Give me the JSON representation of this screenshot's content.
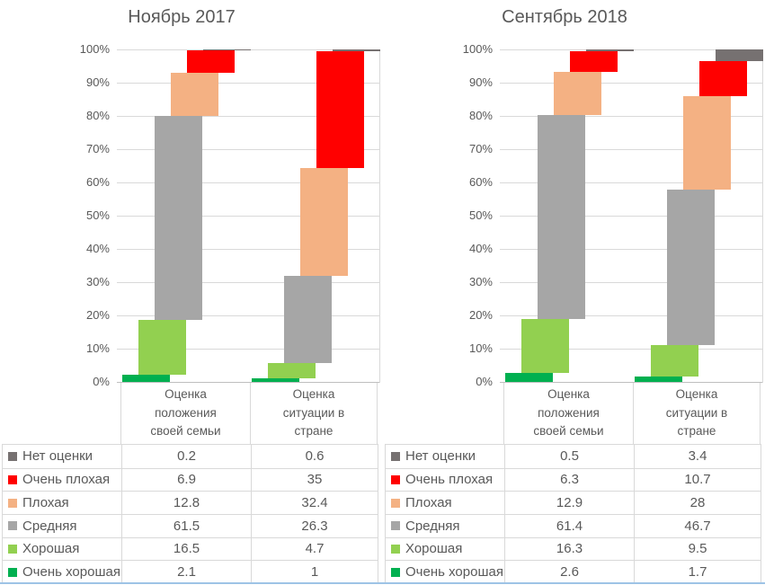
{
  "page": {
    "background": "#FFFFFF"
  },
  "colors": {
    "text": "#595959",
    "gridline": "#D9D9D9",
    "axis_line": "#BFBFBF",
    "table_border": "#D9D9D9",
    "bottom_divider": "#9DC3E6"
  },
  "chart_data": [
    {
      "type": "bar",
      "stacked": true,
      "bar_style": "staggered-stacked-columns",
      "units": "percent",
      "title": "Ноябрь 2017",
      "categories": [
        "Оценка положения своей семьи",
        "Оценка ситуации в стране"
      ],
      "series": [
        {
          "name": "Нет оценки",
          "color": "#767171",
          "values": [
            0.2,
            0.6
          ]
        },
        {
          "name": "Очень плохая",
          "color": "#FF0000",
          "values": [
            6.9,
            35
          ]
        },
        {
          "name": "Плохая",
          "color": "#F4B183",
          "values": [
            12.8,
            32.4
          ]
        },
        {
          "name": "Средняя",
          "color": "#A6A6A6",
          "values": [
            61.5,
            26.3
          ]
        },
        {
          "name": "Хорошая",
          "color": "#92D050",
          "values": [
            16.5,
            4.7
          ]
        },
        {
          "name": "Очень хорошая",
          "color": "#00B050",
          "values": [
            2.1,
            1
          ]
        }
      ],
      "stack_bottom_to_top": [
        "Очень хорошая",
        "Хорошая",
        "Средняя",
        "Плохая",
        "Очень плохая",
        "Нет оценки"
      ],
      "y_ticks": [
        "0%",
        "10%",
        "20%",
        "30%",
        "40%",
        "50%",
        "60%",
        "70%",
        "80%",
        "90%",
        "100%"
      ],
      "ylim": [
        0,
        100
      ],
      "grid": true,
      "legend_position": "table-left-column"
    },
    {
      "type": "bar",
      "stacked": true,
      "bar_style": "staggered-stacked-columns",
      "units": "percent",
      "title": "Сентябрь 2018",
      "categories": [
        "Оценка положения своей семьи",
        "Оценка ситуации в стране"
      ],
      "series": [
        {
          "name": "Нет оценки",
          "color": "#767171",
          "values": [
            0.5,
            3.4
          ]
        },
        {
          "name": "Очень плохая",
          "color": "#FF0000",
          "values": [
            6.3,
            10.7
          ]
        },
        {
          "name": "Плохая",
          "color": "#F4B183",
          "values": [
            12.9,
            28
          ]
        },
        {
          "name": "Средняя",
          "color": "#A6A6A6",
          "values": [
            61.4,
            46.7
          ]
        },
        {
          "name": "Хорошая",
          "color": "#92D050",
          "values": [
            16.3,
            9.5
          ]
        },
        {
          "name": "Очень хорошая",
          "color": "#00B050",
          "values": [
            2.6,
            1.7
          ]
        }
      ],
      "stack_bottom_to_top": [
        "Очень хорошая",
        "Хорошая",
        "Средняя",
        "Плохая",
        "Очень плохая",
        "Нет оценки"
      ],
      "y_ticks": [
        "0%",
        "10%",
        "20%",
        "30%",
        "40%",
        "50%",
        "60%",
        "70%",
        "80%",
        "90%",
        "100%"
      ],
      "ylim": [
        0,
        100
      ],
      "grid": true,
      "legend_position": "table-left-column"
    }
  ]
}
